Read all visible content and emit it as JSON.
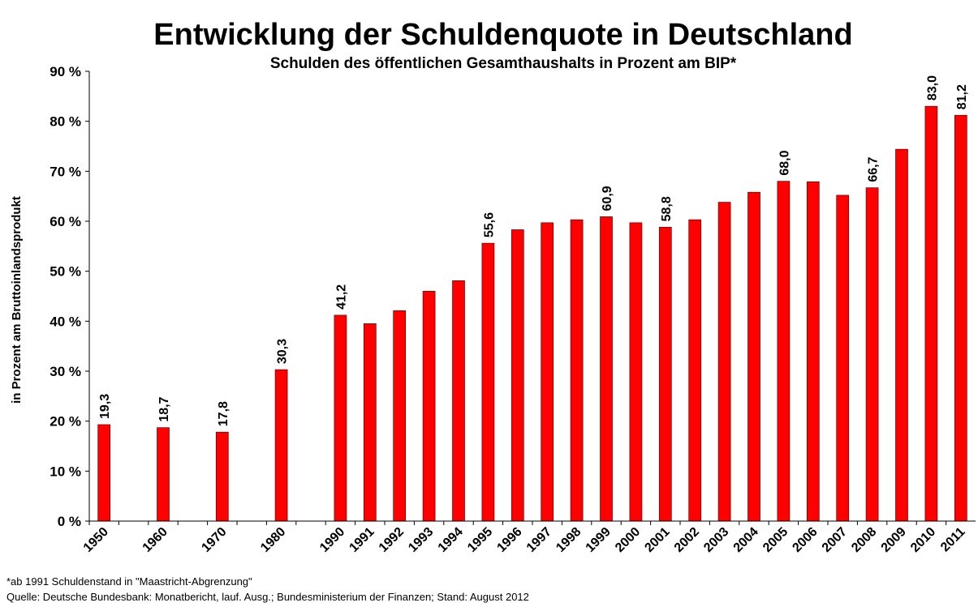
{
  "chart_data": {
    "type": "bar",
    "title": "Entwicklung der Schuldenquote in Deutschland",
    "subtitle": "Schulden des öffentlichen Gesamthaushalts in Prozent am BIP*",
    "y_label": "in Prozent am Bruttoinlandsprodukt",
    "categories": [
      "1950",
      null,
      "1960",
      null,
      "1970",
      null,
      "1980",
      null,
      "1990",
      "1991",
      "1992",
      "1993",
      "1994",
      "1995",
      "1996",
      "1997",
      "1998",
      "1999",
      "2000",
      "2001",
      "2002",
      "2003",
      "2004",
      "2005",
      "2006",
      "2007",
      "2008",
      "2009",
      "2010",
      "2011"
    ],
    "values": [
      19.3,
      null,
      18.7,
      null,
      17.8,
      null,
      30.3,
      null,
      41.2,
      39.5,
      42.1,
      46.0,
      48.1,
      55.6,
      58.3,
      59.7,
      60.3,
      60.9,
      59.7,
      58.8,
      60.3,
      63.8,
      65.8,
      68.0,
      67.9,
      65.2,
      66.7,
      74.4,
      83.0,
      81.2
    ],
    "value_labels": [
      "19,3",
      null,
      "18,7",
      null,
      "17,8",
      null,
      "30,3",
      null,
      "41,2",
      null,
      null,
      null,
      null,
      "55,6",
      null,
      null,
      null,
      "60,9",
      null,
      "58,8",
      null,
      null,
      null,
      "68,0",
      null,
      null,
      "66,7",
      null,
      "83,0",
      "81,2"
    ],
    "color": "#ff0000",
    "ylim": [
      0,
      90
    ],
    "yticks": [
      {
        "value": 0,
        "label": "0 %"
      },
      {
        "value": 10,
        "label": "10 %"
      },
      {
        "value": 20,
        "label": "20 %"
      },
      {
        "value": 30,
        "label": "30 %"
      },
      {
        "value": 40,
        "label": "40 %"
      },
      {
        "value": 50,
        "label": "50 %"
      },
      {
        "value": 60,
        "label": "60 %"
      },
      {
        "value": 70,
        "label": "70 %"
      },
      {
        "value": 80,
        "label": "80 %"
      },
      {
        "value": 90,
        "label": "90 %"
      }
    ],
    "footnotes": [
      "*ab 1991 Schuldenstand in \"Maastricht-Abgrenzung\"",
      "Quelle: Deutsche Bundesbank: Monatbericht, lauf. Ausg.; Bundesministerium der Finanzen;  Stand: August 2012"
    ]
  }
}
